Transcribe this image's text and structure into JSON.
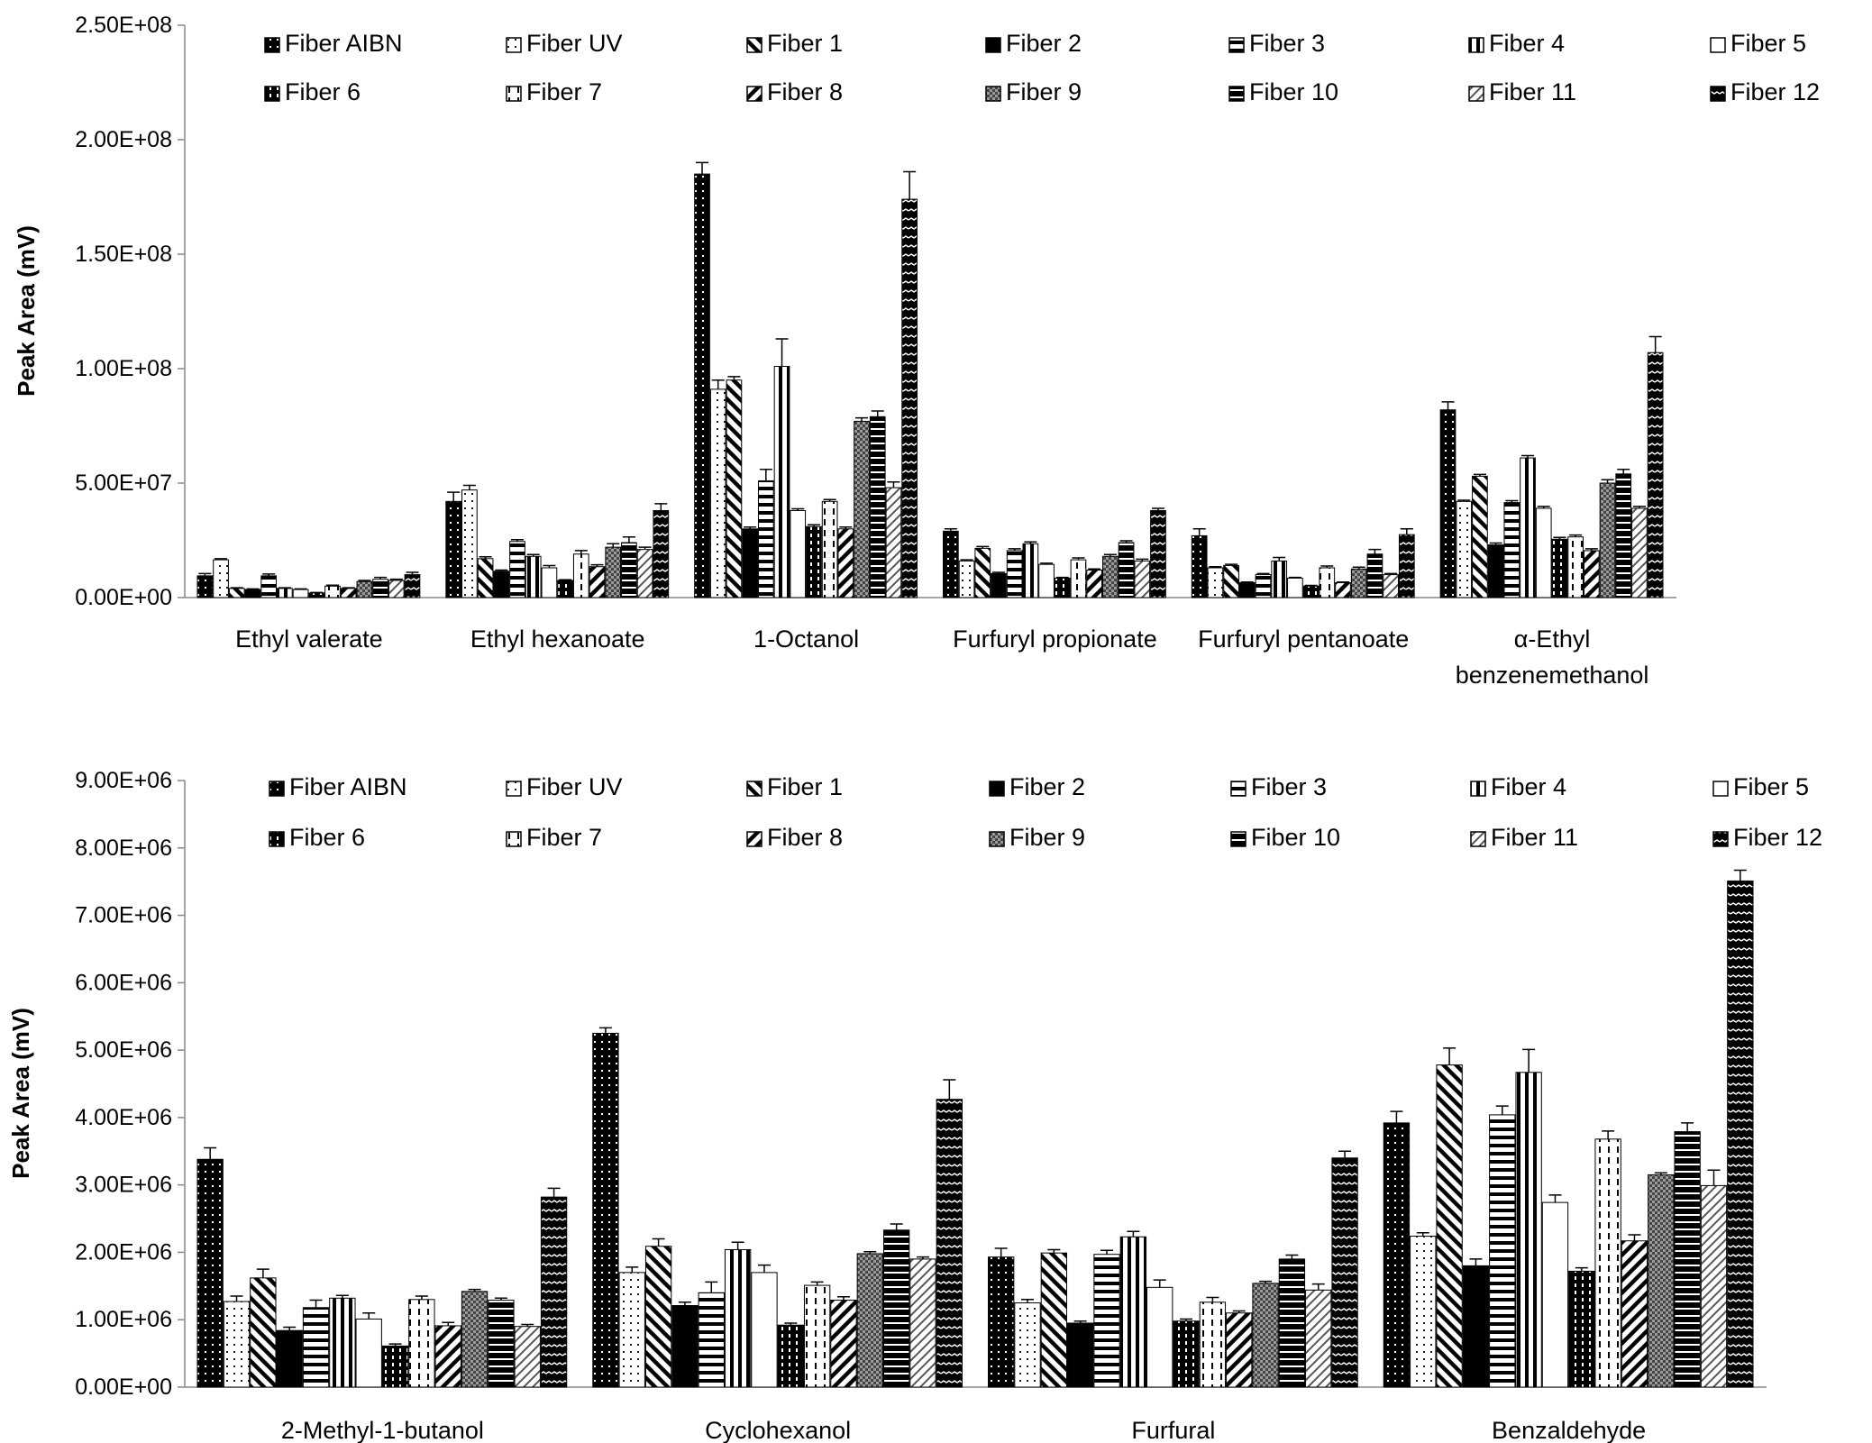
{
  "series_names": [
    "Fiber AIBN",
    "Fiber UV",
    "Fiber 1",
    "Fiber 2",
    "Fiber 3",
    "Fiber 4",
    "Fiber 5",
    "Fiber 6",
    "Fiber 7",
    "Fiber 8",
    "Fiber 9",
    "Fiber 10",
    "Fiber 11",
    "Fiber 12"
  ],
  "series_patterns": [
    "dots-dark",
    "dots-light",
    "diag-fwd",
    "solid",
    "hstripes",
    "vstripes",
    "plain",
    "dark-vstripes",
    "dashed",
    "diag-back",
    "grid",
    "dark-hstripes",
    "diag-light",
    "zigzag"
  ],
  "chart_data": [
    {
      "type": "bar",
      "ylabel": "Peak Area (mV)",
      "ylim": [
        0,
        250000000
      ],
      "yticks": [
        "0.00E+00",
        "5.00E+07",
        "1.00E+08",
        "1.50E+08",
        "2.00E+08",
        "2.50E+08"
      ],
      "categories": [
        "Ethyl valerate",
        "Ethyl hexanoate",
        "1-Octanol",
        "Furfuryl propionate",
        "Furfuryl pentanoate",
        "α-Ethyl\nbenzenemethanol"
      ],
      "series": [
        {
          "name": "Fiber AIBN",
          "values": [
            9500000,
            42000000,
            185000000,
            29000000,
            27000000,
            82000000
          ],
          "errors": [
            1000000,
            4000000,
            5000000,
            1000000,
            3000000,
            3500000
          ]
        },
        {
          "name": "Fiber UV",
          "values": [
            16500000,
            47000000,
            91000000,
            16000000,
            13000000,
            42000000
          ],
          "errors": [
            500000,
            2000000,
            4000000,
            500000,
            500000,
            500000
          ]
        },
        {
          "name": "Fiber 1",
          "values": [
            4000000,
            17000000,
            95000000,
            21500000,
            14000000,
            53000000
          ],
          "errors": [
            300000,
            800000,
            1500000,
            800000,
            500000,
            800000
          ]
        },
        {
          "name": "Fiber 2",
          "values": [
            3500000,
            11500000,
            30000000,
            10500000,
            6500000,
            23000000
          ],
          "errors": [
            300000,
            500000,
            800000,
            500000,
            300000,
            800000
          ]
        },
        {
          "name": "Fiber 3",
          "values": [
            9500000,
            24500000,
            51000000,
            20500000,
            10000000,
            41500000
          ],
          "errors": [
            800000,
            800000,
            5000000,
            800000,
            500000,
            800000
          ]
        },
        {
          "name": "Fiber 4",
          "values": [
            4000000,
            18000000,
            101000000,
            23500000,
            16000000,
            61000000
          ],
          "errors": [
            300000,
            800000,
            12000000,
            800000,
            1500000,
            1000000
          ]
        },
        {
          "name": "Fiber 5",
          "values": [
            3500000,
            13000000,
            38000000,
            14500000,
            8500000,
            39000000
          ],
          "errors": [
            300000,
            1000000,
            800000,
            500000,
            300000,
            800000
          ]
        },
        {
          "name": "Fiber 6",
          "values": [
            2000000,
            7500000,
            31000000,
            8500000,
            5000000,
            25500000
          ],
          "errors": [
            200000,
            300000,
            800000,
            300000,
            300000,
            800000
          ]
        },
        {
          "name": "Fiber 7",
          "values": [
            5000000,
            19000000,
            42000000,
            16500000,
            13000000,
            26500000
          ],
          "errors": [
            400000,
            1500000,
            800000,
            800000,
            800000,
            800000
          ]
        },
        {
          "name": "Fiber 8",
          "values": [
            4000000,
            13500000,
            30000000,
            12000000,
            6500000,
            20500000
          ],
          "errors": [
            300000,
            800000,
            800000,
            500000,
            300000,
            800000
          ]
        },
        {
          "name": "Fiber 9",
          "values": [
            7000000,
            22000000,
            77000000,
            18000000,
            12500000,
            50000000
          ],
          "errors": [
            500000,
            1500000,
            1500000,
            800000,
            800000,
            1500000
          ]
        },
        {
          "name": "Fiber 10",
          "values": [
            8000000,
            24000000,
            79000000,
            24000000,
            19000000,
            54000000
          ],
          "errors": [
            800000,
            2500000,
            2500000,
            800000,
            2000000,
            2000000
          ]
        },
        {
          "name": "Fiber 11",
          "values": [
            7500000,
            21000000,
            48000000,
            16000000,
            10000000,
            39000000
          ],
          "errors": [
            500000,
            1000000,
            2500000,
            800000,
            500000,
            800000
          ]
        },
        {
          "name": "Fiber 12",
          "values": [
            10000000,
            38000000,
            174000000,
            38000000,
            27500000,
            107000000
          ],
          "errors": [
            1000000,
            3000000,
            12000000,
            1000000,
            2500000,
            7000000
          ]
        }
      ]
    },
    {
      "type": "bar",
      "ylabel": "Peak Area (mV)",
      "ylim": [
        0,
        9000000
      ],
      "yticks": [
        "0.00E+00",
        "1.00E+06",
        "2.00E+06",
        "3.00E+06",
        "4.00E+06",
        "5.00E+06",
        "6.00E+06",
        "7.00E+06",
        "8.00E+06",
        "9.00E+06"
      ],
      "categories": [
        "2-Methyl-1-butanol",
        "Cyclohexanol",
        "Furfural",
        "Benzaldehyde"
      ],
      "series": [
        {
          "name": "Fiber AIBN",
          "values": [
            3380000,
            5250000,
            1930000,
            3920000
          ],
          "errors": [
            170000,
            80000,
            130000,
            170000
          ]
        },
        {
          "name": "Fiber UV",
          "values": [
            1270000,
            1700000,
            1250000,
            2240000
          ],
          "errors": [
            80000,
            80000,
            50000,
            50000
          ]
        },
        {
          "name": "Fiber 1",
          "values": [
            1620000,
            2090000,
            1990000,
            4780000
          ],
          "errors": [
            130000,
            110000,
            50000,
            250000
          ]
        },
        {
          "name": "Fiber 2",
          "values": [
            840000,
            1210000,
            950000,
            1800000
          ],
          "errors": [
            50000,
            50000,
            30000,
            100000
          ]
        },
        {
          "name": "Fiber 3",
          "values": [
            1180000,
            1400000,
            1970000,
            4040000
          ],
          "errors": [
            110000,
            160000,
            60000,
            130000
          ]
        },
        {
          "name": "Fiber 4",
          "values": [
            1320000,
            2040000,
            2230000,
            4670000
          ],
          "errors": [
            40000,
            110000,
            80000,
            340000
          ]
        },
        {
          "name": "Fiber 5",
          "values": [
            1010000,
            1700000,
            1480000,
            2740000
          ],
          "errors": [
            90000,
            110000,
            110000,
            110000
          ]
        },
        {
          "name": "Fiber 6",
          "values": [
            610000,
            920000,
            980000,
            1720000
          ],
          "errors": [
            30000,
            30000,
            30000,
            50000
          ]
        },
        {
          "name": "Fiber 7",
          "values": [
            1300000,
            1510000,
            1260000,
            3680000
          ],
          "errors": [
            50000,
            50000,
            70000,
            120000
          ]
        },
        {
          "name": "Fiber 8",
          "values": [
            910000,
            1290000,
            1100000,
            2170000
          ],
          "errors": [
            50000,
            50000,
            30000,
            90000
          ]
        },
        {
          "name": "Fiber 9",
          "values": [
            1420000,
            1980000,
            1540000,
            3150000
          ],
          "errors": [
            30000,
            30000,
            30000,
            30000
          ]
        },
        {
          "name": "Fiber 10",
          "values": [
            1290000,
            2330000,
            1900000,
            3790000
          ],
          "errors": [
            30000,
            90000,
            60000,
            130000
          ]
        },
        {
          "name": "Fiber 11",
          "values": [
            900000,
            1900000,
            1440000,
            2990000
          ],
          "errors": [
            30000,
            30000,
            90000,
            230000
          ]
        },
        {
          "name": "Fiber 12",
          "values": [
            2820000,
            4270000,
            3400000,
            7510000
          ],
          "errors": [
            130000,
            290000,
            100000,
            160000
          ]
        }
      ]
    }
  ]
}
